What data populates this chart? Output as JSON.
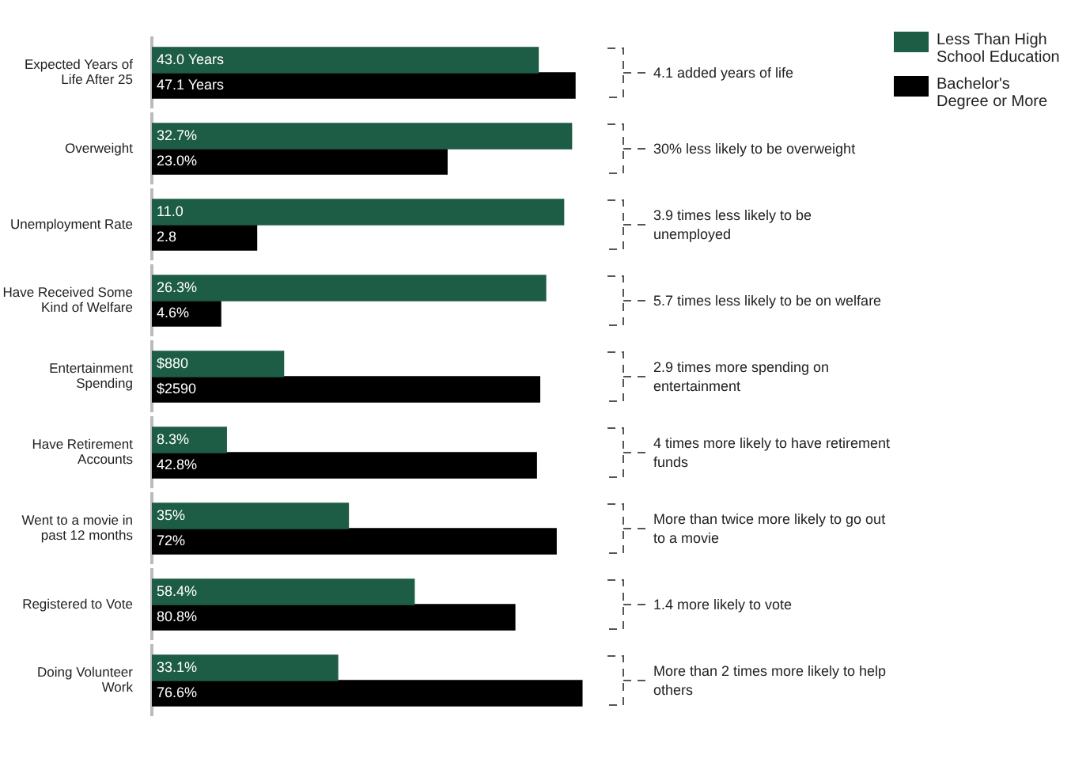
{
  "chart_data": [
    {
      "type": "bar",
      "orientation": "horizontal",
      "legend": "right",
      "categories": [
        "Expected Years of Life After 25"
      ],
      "series": [
        {
          "name": "Less Than High School Education",
          "color": "#1d5c45",
          "values": [
            43.0
          ],
          "value_labels": [
            "43.0 Years"
          ]
        },
        {
          "name": "Bachelor's Degree or More",
          "color": "#000000",
          "values": [
            47.1
          ],
          "value_labels": [
            "47.1 Years"
          ]
        }
      ],
      "annotations": [
        "4.1 added years of life"
      ]
    },
    {
      "type": "bar",
      "orientation": "horizontal",
      "categories": [
        "Overweight"
      ],
      "series": [
        {
          "color": "#1d5c45",
          "values": [
            32.7
          ],
          "value_labels": [
            "32.7%"
          ]
        },
        {
          "color": "#000000",
          "values": [
            23.0
          ],
          "value_labels": [
            "23.0%"
          ]
        }
      ],
      "annotations": [
        "30% less likely to be overweight"
      ]
    },
    {
      "type": "bar",
      "orientation": "horizontal",
      "categories": [
        "Unemployment Rate"
      ],
      "series": [
        {
          "color": "#1d5c45",
          "values": [
            11.0
          ],
          "value_labels": [
            "11.0"
          ]
        },
        {
          "color": "#000000",
          "values": [
            2.8
          ],
          "value_labels": [
            "2.8"
          ]
        }
      ],
      "annotations": [
        "3.9 times less likely to be unemployed"
      ]
    },
    {
      "type": "bar",
      "orientation": "horizontal",
      "categories": [
        "Have Received Some Kind of Welfare"
      ],
      "series": [
        {
          "color": "#1d5c45",
          "values": [
            26.3
          ],
          "value_labels": [
            "26.3%"
          ]
        },
        {
          "color": "#000000",
          "values": [
            4.6
          ],
          "value_labels": [
            "4.6%"
          ]
        }
      ],
      "annotations": [
        "5.7 times less likely to be on welfare"
      ]
    },
    {
      "type": "bar",
      "orientation": "horizontal",
      "categories": [
        "Entertainment Spending"
      ],
      "series": [
        {
          "color": "#1d5c45",
          "values": [
            880
          ],
          "value_labels": [
            "$880"
          ]
        },
        {
          "color": "#000000",
          "values": [
            2590
          ],
          "value_labels": [
            "$2590"
          ]
        }
      ],
      "annotations": [
        "2.9 times more spending on entertainment"
      ]
    },
    {
      "type": "bar",
      "orientation": "horizontal",
      "categories": [
        "Have Retirement Accounts"
      ],
      "series": [
        {
          "color": "#1d5c45",
          "values": [
            8.3
          ],
          "value_labels": [
            "8.3%"
          ]
        },
        {
          "color": "#000000",
          "values": [
            42.8
          ],
          "value_labels": [
            "42.8%"
          ]
        }
      ],
      "annotations": [
        "4 times more likely to have retirement funds"
      ]
    },
    {
      "type": "bar",
      "orientation": "horizontal",
      "categories": [
        "Went to a movie in past 12 months"
      ],
      "series": [
        {
          "color": "#1d5c45",
          "values": [
            35
          ],
          "value_labels": [
            "35%"
          ]
        },
        {
          "color": "#000000",
          "values": [
            72
          ],
          "value_labels": [
            "72%"
          ]
        }
      ],
      "annotations": [
        "More than twice more likely to go out to a movie"
      ]
    },
    {
      "type": "bar",
      "orientation": "horizontal",
      "categories": [
        "Registered to Vote"
      ],
      "series": [
        {
          "color": "#1d5c45",
          "values": [
            58.4
          ],
          "value_labels": [
            "58.4%"
          ]
        },
        {
          "color": "#000000",
          "values": [
            80.8
          ],
          "value_labels": [
            "80.8%"
          ]
        }
      ],
      "annotations": [
        "1.4 more likely to vote"
      ]
    },
    {
      "type": "bar",
      "orientation": "horizontal",
      "categories": [
        "Doing Volunteer Work"
      ],
      "series": [
        {
          "color": "#1d5c45",
          "values": [
            33.1
          ],
          "value_labels": [
            "33.1%"
          ]
        },
        {
          "color": "#000000",
          "values": [
            76.6
          ],
          "value_labels": [
            "76.6%"
          ]
        }
      ],
      "annotations": [
        "More than 2 times more likely to help others"
      ]
    }
  ]
}
